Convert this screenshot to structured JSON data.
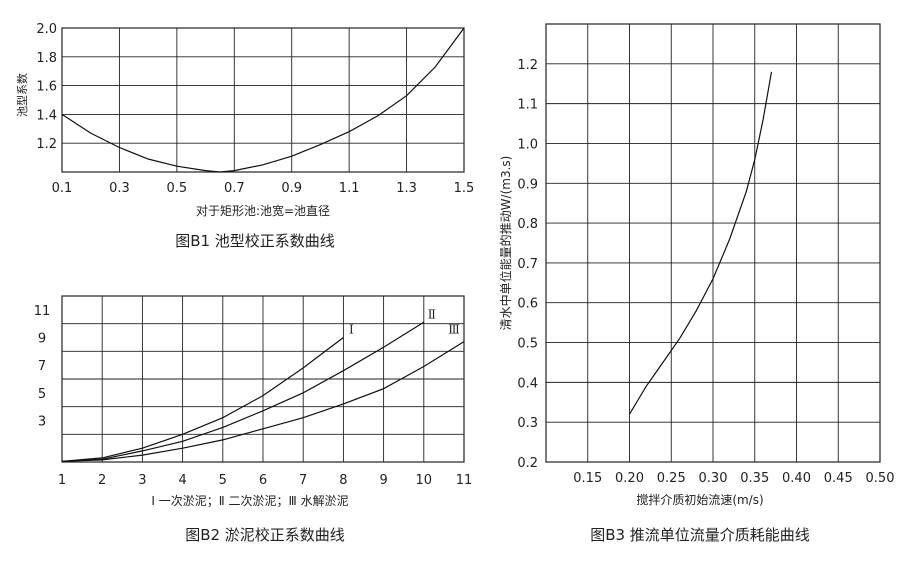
{
  "chart_data": [
    {
      "id": "b1",
      "type": "line",
      "caption": "图B1  池型校正系数曲线",
      "xlabel": "对于矩形池:池宽=池直径",
      "ylabel": "池型系数",
      "xlim": [
        0.1,
        1.5
      ],
      "ylim": [
        1.0,
        2.0
      ],
      "x_ticks": [
        "0.1",
        "0.3",
        "0.5",
        "0.7",
        "0.9",
        "1.1",
        "1.3",
        "1.5"
      ],
      "y_ticks": [
        "1.2",
        "1.4",
        "1.6",
        "1.8",
        "2.0"
      ],
      "grid": true,
      "series": [
        {
          "x": [
            0.1,
            0.2,
            0.3,
            0.4,
            0.5,
            0.6,
            0.65,
            0.7,
            0.8,
            0.9,
            1.0,
            1.1,
            1.2,
            1.3,
            1.4,
            1.5
          ],
          "y": [
            1.4,
            1.27,
            1.17,
            1.09,
            1.04,
            1.01,
            1.0,
            1.01,
            1.05,
            1.11,
            1.19,
            1.28,
            1.39,
            1.53,
            1.73,
            2.0
          ]
        }
      ]
    },
    {
      "id": "b2",
      "type": "line",
      "caption": "图B2   淤泥校正系数曲线",
      "xlabel": "Ⅰ 一次淤泥；Ⅱ  二次淤泥；Ⅲ  水解淤泥",
      "ylabel": "",
      "xlim": [
        1,
        11
      ],
      "ylim": [
        0,
        12
      ],
      "x_ticks": [
        "1",
        "2",
        "3",
        "4",
        "5",
        "6",
        "7",
        "8",
        "9",
        "10",
        "11"
      ],
      "y_ticks": [
        "3",
        "5",
        "7",
        "9",
        "11"
      ],
      "grid": true,
      "series": [
        {
          "name": "Ⅰ",
          "x": [
            1,
            2,
            3,
            4,
            5,
            6,
            7,
            8
          ],
          "y": [
            0.05,
            0.3,
            1.0,
            2.0,
            3.2,
            4.8,
            6.8,
            9.0
          ]
        },
        {
          "name": "Ⅱ",
          "x": [
            1,
            2,
            3,
            4,
            5,
            6,
            7,
            8,
            9,
            10
          ],
          "y": [
            0.05,
            0.2,
            0.8,
            1.5,
            2.5,
            3.7,
            5.0,
            6.6,
            8.3,
            10.1
          ]
        },
        {
          "name": "Ⅲ",
          "x": [
            1,
            2,
            3,
            4,
            5,
            6,
            7,
            8,
            9,
            10,
            11
          ],
          "y": [
            0.05,
            0.15,
            0.5,
            1.0,
            1.6,
            2.4,
            3.2,
            4.2,
            5.3,
            6.9,
            8.7
          ]
        }
      ]
    },
    {
      "id": "b3",
      "type": "line",
      "caption": "图B3  推流单位流量介质耗能曲线",
      "xlabel": "搅拌介质初始流速(m/s)",
      "ylabel": "清水中单位能量的推动W/(m3.s)",
      "xlim": [
        0.1,
        0.5
      ],
      "ylim": [
        0.2,
        1.3
      ],
      "x_ticks": [
        "0.15",
        "0.20",
        "0.25",
        "0.30",
        "0.35",
        "0.40",
        "0.45",
        "0.50"
      ],
      "y_ticks": [
        "0.2",
        "0.3",
        "0.4",
        "0.5",
        "0.6",
        "0.7",
        "0.8",
        "0.9",
        "1.0",
        "1.1",
        "1.2"
      ],
      "grid": true,
      "series": [
        {
          "x": [
            0.2,
            0.22,
            0.24,
            0.26,
            0.28,
            0.3,
            0.32,
            0.34,
            0.35,
            0.36,
            0.37
          ],
          "y": [
            0.32,
            0.39,
            0.45,
            0.51,
            0.58,
            0.66,
            0.76,
            0.88,
            0.96,
            1.06,
            1.18
          ]
        }
      ]
    }
  ]
}
